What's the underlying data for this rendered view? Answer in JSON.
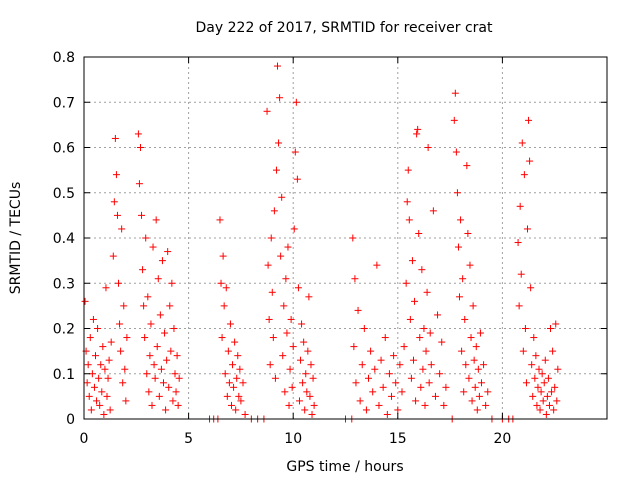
{
  "chart_data": {
    "type": "scatter",
    "title": "Day 222 of 2017, SRMTID for receiver crat",
    "xlabel": "GPS time / hours",
    "ylabel": "SRMTID / TECUs",
    "xlim": [
      0,
      25
    ],
    "ylim": [
      0,
      0.8
    ],
    "xticks": [
      0,
      5,
      10,
      15,
      20
    ],
    "xtick_labels": [
      "0",
      "5",
      "10",
      "15",
      "20"
    ],
    "yticks": [
      0,
      0.1,
      0.2,
      0.3,
      0.4,
      0.5,
      0.6,
      0.7,
      0.8
    ],
    "ytick_labels": [
      "0",
      "0.1",
      "0.2",
      "0.3",
      "0.4",
      "0.5",
      "0.6",
      "0.7",
      "0.8"
    ],
    "grid": true,
    "marker": "+",
    "color": "#ff0000",
    "series": [
      {
        "name": "SRMTID",
        "points": [
          [
            0.05,
            0.26
          ],
          [
            0.1,
            0.15
          ],
          [
            0.15,
            0.08
          ],
          [
            0.2,
            0.12
          ],
          [
            0.25,
            0.05
          ],
          [
            0.3,
            0.18
          ],
          [
            0.35,
            0.02
          ],
          [
            0.4,
            0.1
          ],
          [
            0.45,
            0.22
          ],
          [
            0.5,
            0.07
          ],
          [
            0.55,
            0.14
          ],
          [
            0.6,
            0.04
          ],
          [
            0.65,
            0.2
          ],
          [
            0.7,
            0.09
          ],
          [
            0.75,
            0.03
          ],
          [
            0.8,
            0.12
          ],
          [
            0.85,
            0.06
          ],
          [
            0.9,
            0.16
          ],
          [
            0.95,
            0.01
          ],
          [
            1.0,
            0.11
          ],
          [
            1.05,
            0.29
          ],
          [
            1.1,
            0.05
          ],
          [
            1.15,
            0.09
          ],
          [
            1.2,
            0.13
          ],
          [
            1.25,
            0.02
          ],
          [
            1.3,
            0.17
          ],
          [
            1.4,
            0.36
          ],
          [
            1.45,
            0.48
          ],
          [
            1.5,
            0.62
          ],
          [
            1.55,
            0.54
          ],
          [
            1.6,
            0.45
          ],
          [
            1.65,
            0.3
          ],
          [
            1.7,
            0.21
          ],
          [
            1.75,
            0.15
          ],
          [
            1.8,
            0.42
          ],
          [
            1.85,
            0.08
          ],
          [
            1.9,
            0.25
          ],
          [
            1.95,
            0.11
          ],
          [
            2.0,
            0.04
          ],
          [
            2.05,
            0.18
          ],
          [
            2.6,
            0.63
          ],
          [
            2.65,
            0.52
          ],
          [
            2.7,
            0.6
          ],
          [
            2.75,
            0.45
          ],
          [
            2.8,
            0.33
          ],
          [
            2.85,
            0.25
          ],
          [
            2.9,
            0.18
          ],
          [
            2.95,
            0.4
          ],
          [
            3.0,
            0.1
          ],
          [
            3.05,
            0.27
          ],
          [
            3.1,
            0.06
          ],
          [
            3.15,
            0.14
          ],
          [
            3.2,
            0.21
          ],
          [
            3.25,
            0.03
          ],
          [
            3.3,
            0.38
          ],
          [
            3.35,
            0.12
          ],
          [
            3.4,
            0.09
          ],
          [
            3.45,
            0.44
          ],
          [
            3.5,
            0.16
          ],
          [
            3.55,
            0.31
          ],
          [
            3.6,
            0.05
          ],
          [
            3.65,
            0.23
          ],
          [
            3.7,
            0.11
          ],
          [
            3.75,
            0.35
          ],
          [
            3.8,
            0.08
          ],
          [
            3.85,
            0.19
          ],
          [
            3.9,
            0.02
          ],
          [
            3.95,
            0.13
          ],
          [
            4.0,
            0.37
          ],
          [
            4.05,
            0.07
          ],
          [
            4.1,
            0.25
          ],
          [
            4.15,
            0.15
          ],
          [
            4.2,
            0.3
          ],
          [
            4.25,
            0.04
          ],
          [
            4.3,
            0.2
          ],
          [
            4.35,
            0.1
          ],
          [
            4.4,
            0.06
          ],
          [
            4.45,
            0.14
          ],
          [
            4.5,
            0.03
          ],
          [
            4.55,
            0.09
          ],
          [
            6.0,
            0.0
          ],
          [
            6.2,
            0.0
          ],
          [
            6.4,
            0.0
          ],
          [
            6.5,
            0.44
          ],
          [
            6.55,
            0.3
          ],
          [
            6.6,
            0.18
          ],
          [
            6.65,
            0.36
          ],
          [
            6.7,
            0.25
          ],
          [
            6.75,
            0.1
          ],
          [
            6.8,
            0.29
          ],
          [
            6.85,
            0.05
          ],
          [
            6.9,
            0.15
          ],
          [
            6.95,
            0.08
          ],
          [
            7.0,
            0.21
          ],
          [
            7.05,
            0.03
          ],
          [
            7.1,
            0.12
          ],
          [
            7.15,
            0.07
          ],
          [
            7.2,
            0.17
          ],
          [
            7.25,
            0.02
          ],
          [
            7.3,
            0.09
          ],
          [
            7.35,
            0.14
          ],
          [
            7.4,
            0.05
          ],
          [
            7.45,
            0.11
          ],
          [
            7.5,
            0.04
          ],
          [
            7.6,
            0.08
          ],
          [
            7.7,
            0.01
          ],
          [
            8.0,
            0.0
          ],
          [
            8.3,
            0.0
          ],
          [
            8.6,
            0.0
          ],
          [
            8.75,
            0.68
          ],
          [
            8.8,
            0.34
          ],
          [
            8.85,
            0.22
          ],
          [
            8.9,
            0.12
          ],
          [
            8.95,
            0.4
          ],
          [
            9.0,
            0.28
          ],
          [
            9.05,
            0.18
          ],
          [
            9.1,
            0.46
          ],
          [
            9.15,
            0.09
          ],
          [
            9.2,
            0.55
          ],
          [
            9.25,
            0.78
          ],
          [
            9.3,
            0.61
          ],
          [
            9.35,
            0.71
          ],
          [
            9.4,
            0.36
          ],
          [
            9.45,
            0.49
          ],
          [
            9.5,
            0.14
          ],
          [
            9.55,
            0.25
          ],
          [
            9.6,
            0.06
          ],
          [
            9.65,
            0.31
          ],
          [
            9.7,
            0.19
          ],
          [
            9.75,
            0.38
          ],
          [
            9.8,
            0.03
          ],
          [
            9.85,
            0.11
          ],
          [
            9.9,
            0.22
          ],
          [
            9.95,
            0.07
          ],
          [
            10.0,
            0.16
          ],
          [
            10.05,
            0.42
          ],
          [
            10.1,
            0.59
          ],
          [
            10.15,
            0.7
          ],
          [
            10.2,
            0.53
          ],
          [
            10.25,
            0.29
          ],
          [
            10.3,
            0.04
          ],
          [
            10.35,
            0.13
          ],
          [
            10.4,
            0.21
          ],
          [
            10.45,
            0.08
          ],
          [
            10.5,
            0.17
          ],
          [
            10.55,
            0.02
          ],
          [
            10.6,
            0.1
          ],
          [
            10.65,
            0.06
          ],
          [
            10.7,
            0.15
          ],
          [
            10.75,
            0.27
          ],
          [
            10.8,
            0.05
          ],
          [
            10.85,
            0.12
          ],
          [
            10.9,
            0.01
          ],
          [
            10.95,
            0.09
          ],
          [
            11.0,
            0.03
          ],
          [
            12.5,
            0.0
          ],
          [
            12.8,
            0.0
          ],
          [
            12.85,
            0.4
          ],
          [
            12.9,
            0.16
          ],
          [
            12.95,
            0.31
          ],
          [
            13.0,
            0.08
          ],
          [
            13.1,
            0.24
          ],
          [
            13.2,
            0.04
          ],
          [
            13.3,
            0.12
          ],
          [
            13.4,
            0.2
          ],
          [
            13.5,
            0.02
          ],
          [
            13.6,
            0.09
          ],
          [
            13.7,
            0.15
          ],
          [
            13.8,
            0.06
          ],
          [
            13.9,
            0.11
          ],
          [
            14.0,
            0.34
          ],
          [
            14.1,
            0.03
          ],
          [
            14.2,
            0.13
          ],
          [
            14.3,
            0.07
          ],
          [
            14.4,
            0.18
          ],
          [
            14.5,
            0.01
          ],
          [
            14.6,
            0.1
          ],
          [
            14.7,
            0.05
          ],
          [
            14.8,
            0.14
          ],
          [
            14.9,
            0.08
          ],
          [
            15.0,
            0.02
          ],
          [
            15.1,
            0.12
          ],
          [
            15.2,
            0.06
          ],
          [
            15.3,
            0.16
          ],
          [
            15.4,
            0.3
          ],
          [
            15.45,
            0.48
          ],
          [
            15.5,
            0.55
          ],
          [
            15.55,
            0.44
          ],
          [
            15.6,
            0.22
          ],
          [
            15.65,
            0.09
          ],
          [
            15.7,
            0.35
          ],
          [
            15.75,
            0.13
          ],
          [
            15.8,
            0.26
          ],
          [
            15.85,
            0.04
          ],
          [
            15.9,
            0.63
          ],
          [
            15.95,
            0.64
          ],
          [
            16.0,
            0.41
          ],
          [
            16.05,
            0.18
          ],
          [
            16.1,
            0.07
          ],
          [
            16.15,
            0.33
          ],
          [
            16.2,
            0.11
          ],
          [
            16.25,
            0.2
          ],
          [
            16.3,
            0.03
          ],
          [
            16.35,
            0.15
          ],
          [
            16.4,
            0.28
          ],
          [
            16.45,
            0.6
          ],
          [
            16.5,
            0.08
          ],
          [
            16.55,
            0.19
          ],
          [
            16.6,
            0.12
          ],
          [
            16.7,
            0.46
          ],
          [
            16.8,
            0.05
          ],
          [
            16.9,
            0.23
          ],
          [
            17.0,
            0.1
          ],
          [
            17.1,
            0.17
          ],
          [
            17.2,
            0.03
          ],
          [
            17.3,
            0.07
          ],
          [
            17.6,
            0.0
          ],
          [
            17.7,
            0.66
          ],
          [
            17.75,
            0.72
          ],
          [
            17.8,
            0.59
          ],
          [
            17.85,
            0.5
          ],
          [
            17.9,
            0.38
          ],
          [
            17.95,
            0.27
          ],
          [
            18.0,
            0.44
          ],
          [
            18.05,
            0.15
          ],
          [
            18.1,
            0.31
          ],
          [
            18.15,
            0.06
          ],
          [
            18.2,
            0.22
          ],
          [
            18.25,
            0.12
          ],
          [
            18.3,
            0.56
          ],
          [
            18.35,
            0.41
          ],
          [
            18.4,
            0.09
          ],
          [
            18.45,
            0.34
          ],
          [
            18.5,
            0.18
          ],
          [
            18.55,
            0.04
          ],
          [
            18.6,
            0.25
          ],
          [
            18.65,
            0.13
          ],
          [
            18.7,
            0.07
          ],
          [
            18.75,
            0.16
          ],
          [
            18.8,
            0.02
          ],
          [
            18.85,
            0.11
          ],
          [
            18.9,
            0.05
          ],
          [
            18.95,
            0.19
          ],
          [
            19.0,
            0.08
          ],
          [
            19.1,
            0.12
          ],
          [
            19.2,
            0.03
          ],
          [
            19.3,
            0.06
          ],
          [
            19.5,
            0.0
          ],
          [
            20.0,
            0.0
          ],
          [
            20.3,
            0.0
          ],
          [
            20.5,
            0.0
          ],
          [
            20.75,
            0.39
          ],
          [
            20.8,
            0.25
          ],
          [
            20.85,
            0.47
          ],
          [
            20.9,
            0.32
          ],
          [
            20.95,
            0.61
          ],
          [
            21.0,
            0.15
          ],
          [
            21.05,
            0.54
          ],
          [
            21.1,
            0.2
          ],
          [
            21.15,
            0.08
          ],
          [
            21.2,
            0.42
          ],
          [
            21.25,
            0.66
          ],
          [
            21.3,
            0.57
          ],
          [
            21.35,
            0.29
          ],
          [
            21.4,
            0.12
          ],
          [
            21.45,
            0.05
          ],
          [
            21.5,
            0.18
          ],
          [
            21.55,
            0.09
          ],
          [
            21.6,
            0.14
          ],
          [
            21.65,
            0.03
          ],
          [
            21.7,
            0.07
          ],
          [
            21.75,
            0.11
          ],
          [
            21.8,
            0.02
          ],
          [
            21.85,
            0.06
          ],
          [
            21.9,
            0.1
          ],
          [
            21.95,
            0.04
          ],
          [
            22.0,
            0.08
          ],
          [
            22.05,
            0.13
          ],
          [
            22.1,
            0.01
          ],
          [
            22.15,
            0.05
          ],
          [
            22.2,
            0.09
          ],
          [
            22.25,
            0.03
          ],
          [
            22.3,
            0.2
          ],
          [
            22.35,
            0.06
          ],
          [
            22.4,
            0.15
          ],
          [
            22.45,
            0.02
          ],
          [
            22.5,
            0.07
          ],
          [
            22.55,
            0.21
          ],
          [
            22.6,
            0.04
          ],
          [
            22.65,
            0.11
          ]
        ]
      }
    ]
  }
}
